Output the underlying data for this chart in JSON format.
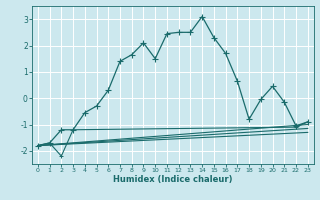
{
  "xlabel": "Humidex (Indice chaleur)",
  "bg_color": "#cce8ee",
  "grid_color": "#ffffff",
  "line_color": "#1a6b6b",
  "xlim": [
    -0.5,
    23.5
  ],
  "ylim": [
    -2.5,
    3.5
  ],
  "xticks": [
    0,
    1,
    2,
    3,
    4,
    5,
    6,
    7,
    8,
    9,
    10,
    11,
    12,
    13,
    14,
    15,
    16,
    17,
    18,
    19,
    20,
    21,
    22,
    23
  ],
  "yticks": [
    -2,
    -1,
    0,
    1,
    2,
    3
  ],
  "curve1_x": [
    0,
    1,
    2,
    3,
    4,
    5,
    6,
    7,
    8,
    9,
    10,
    11,
    12,
    13,
    14,
    15,
    16,
    17,
    18,
    19,
    20,
    21,
    22,
    23
  ],
  "curve1_y": [
    -1.8,
    -1.7,
    -1.2,
    -1.2,
    -0.55,
    -0.3,
    0.3,
    1.4,
    1.65,
    2.1,
    1.5,
    2.45,
    2.5,
    2.5,
    3.1,
    2.3,
    1.7,
    0.65,
    -0.8,
    -0.05,
    0.45,
    -0.15,
    -1.05,
    -0.9
  ],
  "curve2_x": [
    0,
    1,
    2,
    3,
    22,
    23
  ],
  "curve2_y": [
    -1.8,
    -1.7,
    -2.2,
    -1.2,
    -1.1,
    -0.9
  ],
  "line1_x": [
    0,
    23
  ],
  "line1_y": [
    -1.8,
    -1.0
  ],
  "line2_x": [
    0,
    23
  ],
  "line2_y": [
    -1.8,
    -1.15
  ],
  "line3_x": [
    0,
    23
  ],
  "line3_y": [
    -1.8,
    -1.3
  ]
}
